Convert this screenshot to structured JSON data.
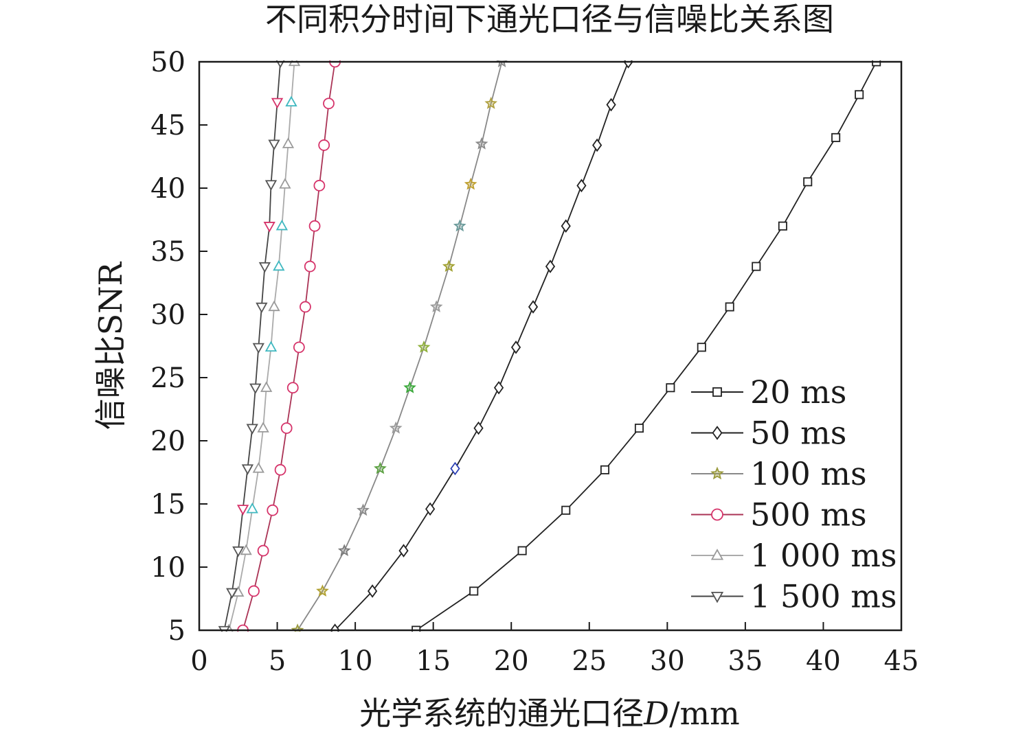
{
  "chart_data": {
    "type": "line",
    "title": "不同积分时间下通光口径与信噪比关系图",
    "xlabel": "光学系统的通光口径",
    "xlabel_var": "D",
    "xlabel_unit": "/mm",
    "ylabel": "信噪比SNR",
    "xlim": [
      0,
      45
    ],
    "ylim": [
      5,
      50
    ],
    "xticks": [
      "0",
      "5",
      "10",
      "15",
      "20",
      "25",
      "30",
      "35",
      "40",
      "45"
    ],
    "yticks": [
      "5",
      "10",
      "15",
      "20",
      "25",
      "30",
      "35",
      "40",
      "45",
      "50"
    ],
    "grid": false,
    "legend_position": "bottom-right",
    "series": [
      {
        "name": "20 ms",
        "marker": "square",
        "color": "#222222",
        "marker_colors": [
          "#222222"
        ],
        "x": [
          13.9,
          17.6,
          20.7,
          23.5,
          26.0,
          28.2,
          30.2,
          32.2,
          34.0,
          35.7,
          37.4,
          39.0,
          40.8,
          42.3,
          43.4
        ],
        "y": [
          5.0,
          8.1,
          11.3,
          14.5,
          17.7,
          21.0,
          24.2,
          27.4,
          30.6,
          33.8,
          37.0,
          40.5,
          44.0,
          47.4,
          50.0
        ]
      },
      {
        "name": "50 ms",
        "marker": "diamond",
        "color": "#222222",
        "marker_colors": [
          "#222222",
          "#222222",
          "#222222",
          "#222222",
          "#2b3fb5",
          "#222222"
        ],
        "x": [
          8.7,
          11.1,
          13.1,
          14.8,
          16.4,
          17.9,
          19.2,
          20.3,
          21.4,
          22.5,
          23.5,
          24.5,
          25.5,
          26.4,
          27.5
        ],
        "y": [
          5.0,
          8.1,
          11.3,
          14.6,
          17.8,
          21.0,
          24.2,
          27.4,
          30.6,
          33.8,
          37.0,
          40.2,
          43.4,
          46.6,
          50.0
        ]
      },
      {
        "name": "100 ms",
        "marker": "star",
        "color": "#888888",
        "marker_colors": [
          "#9a9a3c",
          "#b0a030",
          "#7a7a7a",
          "#8a8a8a",
          "#5aa040",
          "#9a9a9a",
          "#3aa83a",
          "#8fb03a",
          "#9a9a9a",
          "#a0a030",
          "#6a9a9a",
          "#bfa030",
          "#8a8a8a",
          "#b0a040",
          "#8a8a8a"
        ],
        "x": [
          6.3,
          7.9,
          9.3,
          10.5,
          11.6,
          12.6,
          13.5,
          14.4,
          15.2,
          16.0,
          16.7,
          17.4,
          18.1,
          18.7,
          19.4
        ],
        "y": [
          5.0,
          8.1,
          11.3,
          14.5,
          17.8,
          21.0,
          24.2,
          27.4,
          30.6,
          33.8,
          37.0,
          40.3,
          43.5,
          46.7,
          50.0
        ]
      },
      {
        "name": "500 ms",
        "marker": "circle",
        "color": "#aa3355",
        "marker_colors": [
          "#d6336a"
        ],
        "x": [
          2.8,
          3.5,
          4.1,
          4.7,
          5.2,
          5.6,
          6.0,
          6.4,
          6.8,
          7.1,
          7.4,
          7.7,
          8.0,
          8.3,
          8.7
        ],
        "y": [
          5.0,
          8.1,
          11.3,
          14.5,
          17.7,
          21.0,
          24.2,
          27.4,
          30.6,
          33.8,
          37.0,
          40.2,
          43.4,
          46.7,
          50.0
        ]
      },
      {
        "name": "1 000 ms",
        "marker": "triangle-up",
        "color": "#aaaaaa",
        "marker_colors": [
          "#9a9a9a",
          "#9a9a9a",
          "#9a9a9a",
          "#3fb8c0",
          "#9a9a9a",
          "#9a9a9a",
          "#9a9a9a",
          "#3fb8c0",
          "#9a9a9a",
          "#3fb8c0",
          "#3fb8c0",
          "#9a9a9a",
          "#9a9a9a",
          "#3fb8c0",
          "#9a9a9a"
        ],
        "x": [
          1.9,
          2.5,
          3.0,
          3.4,
          3.8,
          4.1,
          4.3,
          4.6,
          4.8,
          5.1,
          5.3,
          5.5,
          5.7,
          5.9,
          6.1
        ],
        "y": [
          5.0,
          8.0,
          11.3,
          14.6,
          17.8,
          21.0,
          24.2,
          27.4,
          30.6,
          33.8,
          37.0,
          40.3,
          43.5,
          46.8,
          50.0
        ]
      },
      {
        "name": "1 500 ms",
        "marker": "triangle-down",
        "color": "#444444",
        "marker_colors": [
          "#555555",
          "#555555",
          "#555555",
          "#d6336a",
          "#555555",
          "#555555",
          "#555555",
          "#555555",
          "#555555",
          "#555555",
          "#d6336a",
          "#555555",
          "#555555",
          "#d6336a",
          "#555555"
        ],
        "x": [
          1.6,
          2.1,
          2.5,
          2.8,
          3.1,
          3.4,
          3.6,
          3.8,
          4.0,
          4.2,
          4.5,
          4.6,
          4.8,
          5.0,
          5.2
        ],
        "y": [
          5.0,
          8.0,
          11.3,
          14.6,
          17.8,
          21.0,
          24.2,
          27.4,
          30.6,
          33.8,
          37.0,
          40.3,
          43.5,
          46.8,
          50.0
        ]
      }
    ]
  }
}
